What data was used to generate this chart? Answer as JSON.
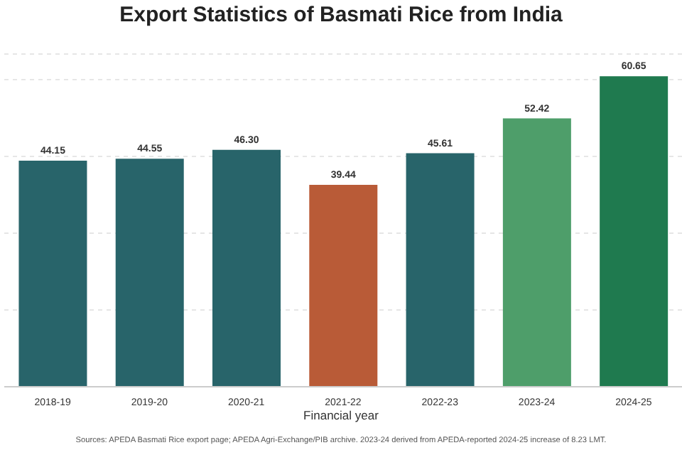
{
  "chart_data": {
    "type": "bar",
    "title": "Export Statistics of Basmati Rice from India",
    "xlabel": "Financial year",
    "categories": [
      "2018-19",
      "2019-20",
      "2020-21",
      "2021-22",
      "2022-23",
      "2023-24",
      "2024-25"
    ],
    "values": [
      44.15,
      44.55,
      46.3,
      39.44,
      45.61,
      52.42,
      60.65
    ],
    "colors": [
      "#28646a",
      "#28646a",
      "#28646a",
      "#b95b37",
      "#28646a",
      "#4e9e6a",
      "#1f7a4f"
    ],
    "ylim": [
      0,
      65
    ],
    "value_labels": [
      "44.15",
      "44.55",
      "46.30",
      "39.44",
      "45.61",
      "52.42",
      "60.65"
    ],
    "tick_labels": "x",
    "grid": "y",
    "annotations": [
      "Sources: APEDA Basmati Rice export page; APEDA Agri-Exchange/PIB archive. 2023-24 derived from APEDA-reported 2024-25 increase of 8.23 LMT."
    ]
  }
}
